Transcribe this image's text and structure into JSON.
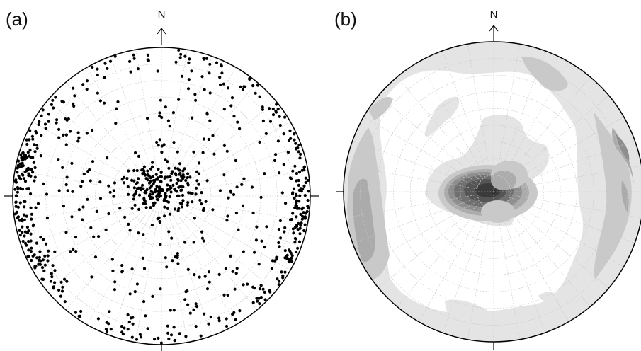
{
  "figure": {
    "panels": [
      {
        "id": "a",
        "label": "(a)",
        "north_label": "N",
        "plot_type": "stereonet-pole-scatter",
        "point_color": "#000000",
        "pole_count_approx": 950
      },
      {
        "id": "b",
        "label": "(b)",
        "north_label": "N",
        "plot_type": "stereonet-density-contour",
        "contour_fill_colors": [
          "#ffffff",
          "#e4e4e4",
          "#c9c9c9",
          "#ababab",
          "#8e8e8e",
          "#707070",
          "#555555",
          "#3b3b3b"
        ]
      }
    ],
    "net": {
      "primitive_color": "#000000",
      "grid_color": "#c8c8c8",
      "grid_style": "dashed"
    }
  }
}
